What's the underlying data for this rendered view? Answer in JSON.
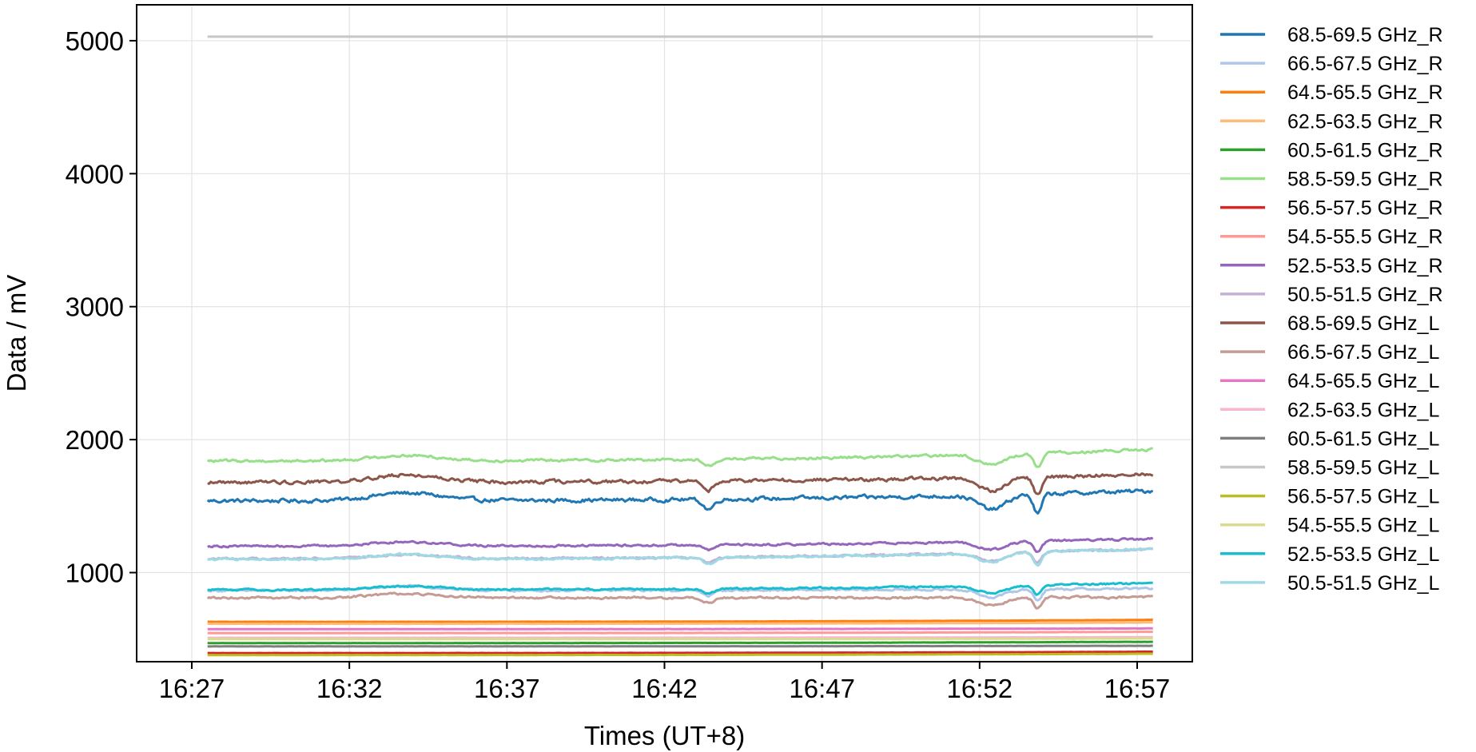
{
  "chart_data": {
    "type": "line",
    "title": "",
    "xlabel": "Times (UT+8)",
    "ylabel": "Data / mV",
    "x_start": "16:27:30",
    "x_end": "16:57:30",
    "xlim": [
      "16:25:15",
      "16:58:45"
    ],
    "ylim": [
      330,
      5270
    ],
    "xticks": [
      "16:27",
      "16:32",
      "16:37",
      "16:42",
      "16:47",
      "16:52",
      "16:57"
    ],
    "yticks": [
      1000,
      2000,
      3000,
      4000,
      5000
    ],
    "grid": true,
    "legend_position": "outside-right",
    "series": [
      {
        "name": "68.5-69.5 GHz_R",
        "color": "#1f77b4",
        "base": 1540,
        "end": 1615,
        "noise": 26,
        "disturbance": true
      },
      {
        "name": "66.5-67.5 GHz_R",
        "color": "#aec7e8",
        "base": 865,
        "end": 880,
        "noise": 14,
        "disturbance": true
      },
      {
        "name": "64.5-65.5 GHz_R",
        "color": "#ff7f0e",
        "base": 630,
        "end": 645,
        "noise": 1,
        "disturbance": false
      },
      {
        "name": "62.5-63.5 GHz_R",
        "color": "#ffbb78",
        "base": 615,
        "end": 625,
        "noise": 1,
        "disturbance": false
      },
      {
        "name": "60.5-61.5 GHz_R",
        "color": "#2ca02c",
        "base": 470,
        "end": 480,
        "noise": 1,
        "disturbance": false
      },
      {
        "name": "58.5-59.5 GHz_R",
        "color": "#98df8a",
        "base": 1840,
        "end": 1925,
        "noise": 18,
        "disturbance": true
      },
      {
        "name": "56.5-57.5 GHz_R",
        "color": "#d62728",
        "base": 395,
        "end": 405,
        "noise": 1,
        "disturbance": false
      },
      {
        "name": "54.5-55.5 GHz_R",
        "color": "#ff9896",
        "base": 545,
        "end": 555,
        "noise": 1,
        "disturbance": false
      },
      {
        "name": "52.5-53.5 GHz_R",
        "color": "#9467bd",
        "base": 1200,
        "end": 1255,
        "noise": 14,
        "disturbance": true
      },
      {
        "name": "50.5-51.5 GHz_R",
        "color": "#c5b0d5",
        "base": 1105,
        "end": 1180,
        "noise": 14,
        "disturbance": true
      },
      {
        "name": "68.5-69.5 GHz_L",
        "color": "#8c564b",
        "base": 1680,
        "end": 1740,
        "noise": 24,
        "disturbance": true
      },
      {
        "name": "66.5-67.5 GHz_L",
        "color": "#c49c94",
        "base": 810,
        "end": 815,
        "noise": 14,
        "disturbance": true
      },
      {
        "name": "64.5-65.5 GHz_L",
        "color": "#e377c2",
        "base": 575,
        "end": 580,
        "noise": 1,
        "disturbance": false
      },
      {
        "name": "62.5-63.5 GHz_L",
        "color": "#f7b6d2",
        "base": 510,
        "end": 515,
        "noise": 1,
        "disturbance": false
      },
      {
        "name": "60.5-61.5 GHz_L",
        "color": "#7f7f7f",
        "base": 445,
        "end": 450,
        "noise": 1,
        "disturbance": false
      },
      {
        "name": "58.5-59.5 GHz_L",
        "color": "#c7c7c7",
        "base": 5030,
        "end": 5030,
        "noise": 0,
        "disturbance": false
      },
      {
        "name": "56.5-57.5 GHz_L",
        "color": "#bcbd22",
        "base": 380,
        "end": 390,
        "noise": 1,
        "disturbance": false
      },
      {
        "name": "54.5-55.5 GHz_L",
        "color": "#dbdb8d",
        "base": 500,
        "end": 505,
        "noise": 1,
        "disturbance": false
      },
      {
        "name": "52.5-53.5 GHz_L",
        "color": "#17becf",
        "base": 870,
        "end": 920,
        "noise": 12,
        "disturbance": true
      },
      {
        "name": "50.5-51.5 GHz_L",
        "color": "#9edae5",
        "base": 1100,
        "end": 1180,
        "noise": 16,
        "disturbance": true
      }
    ]
  }
}
